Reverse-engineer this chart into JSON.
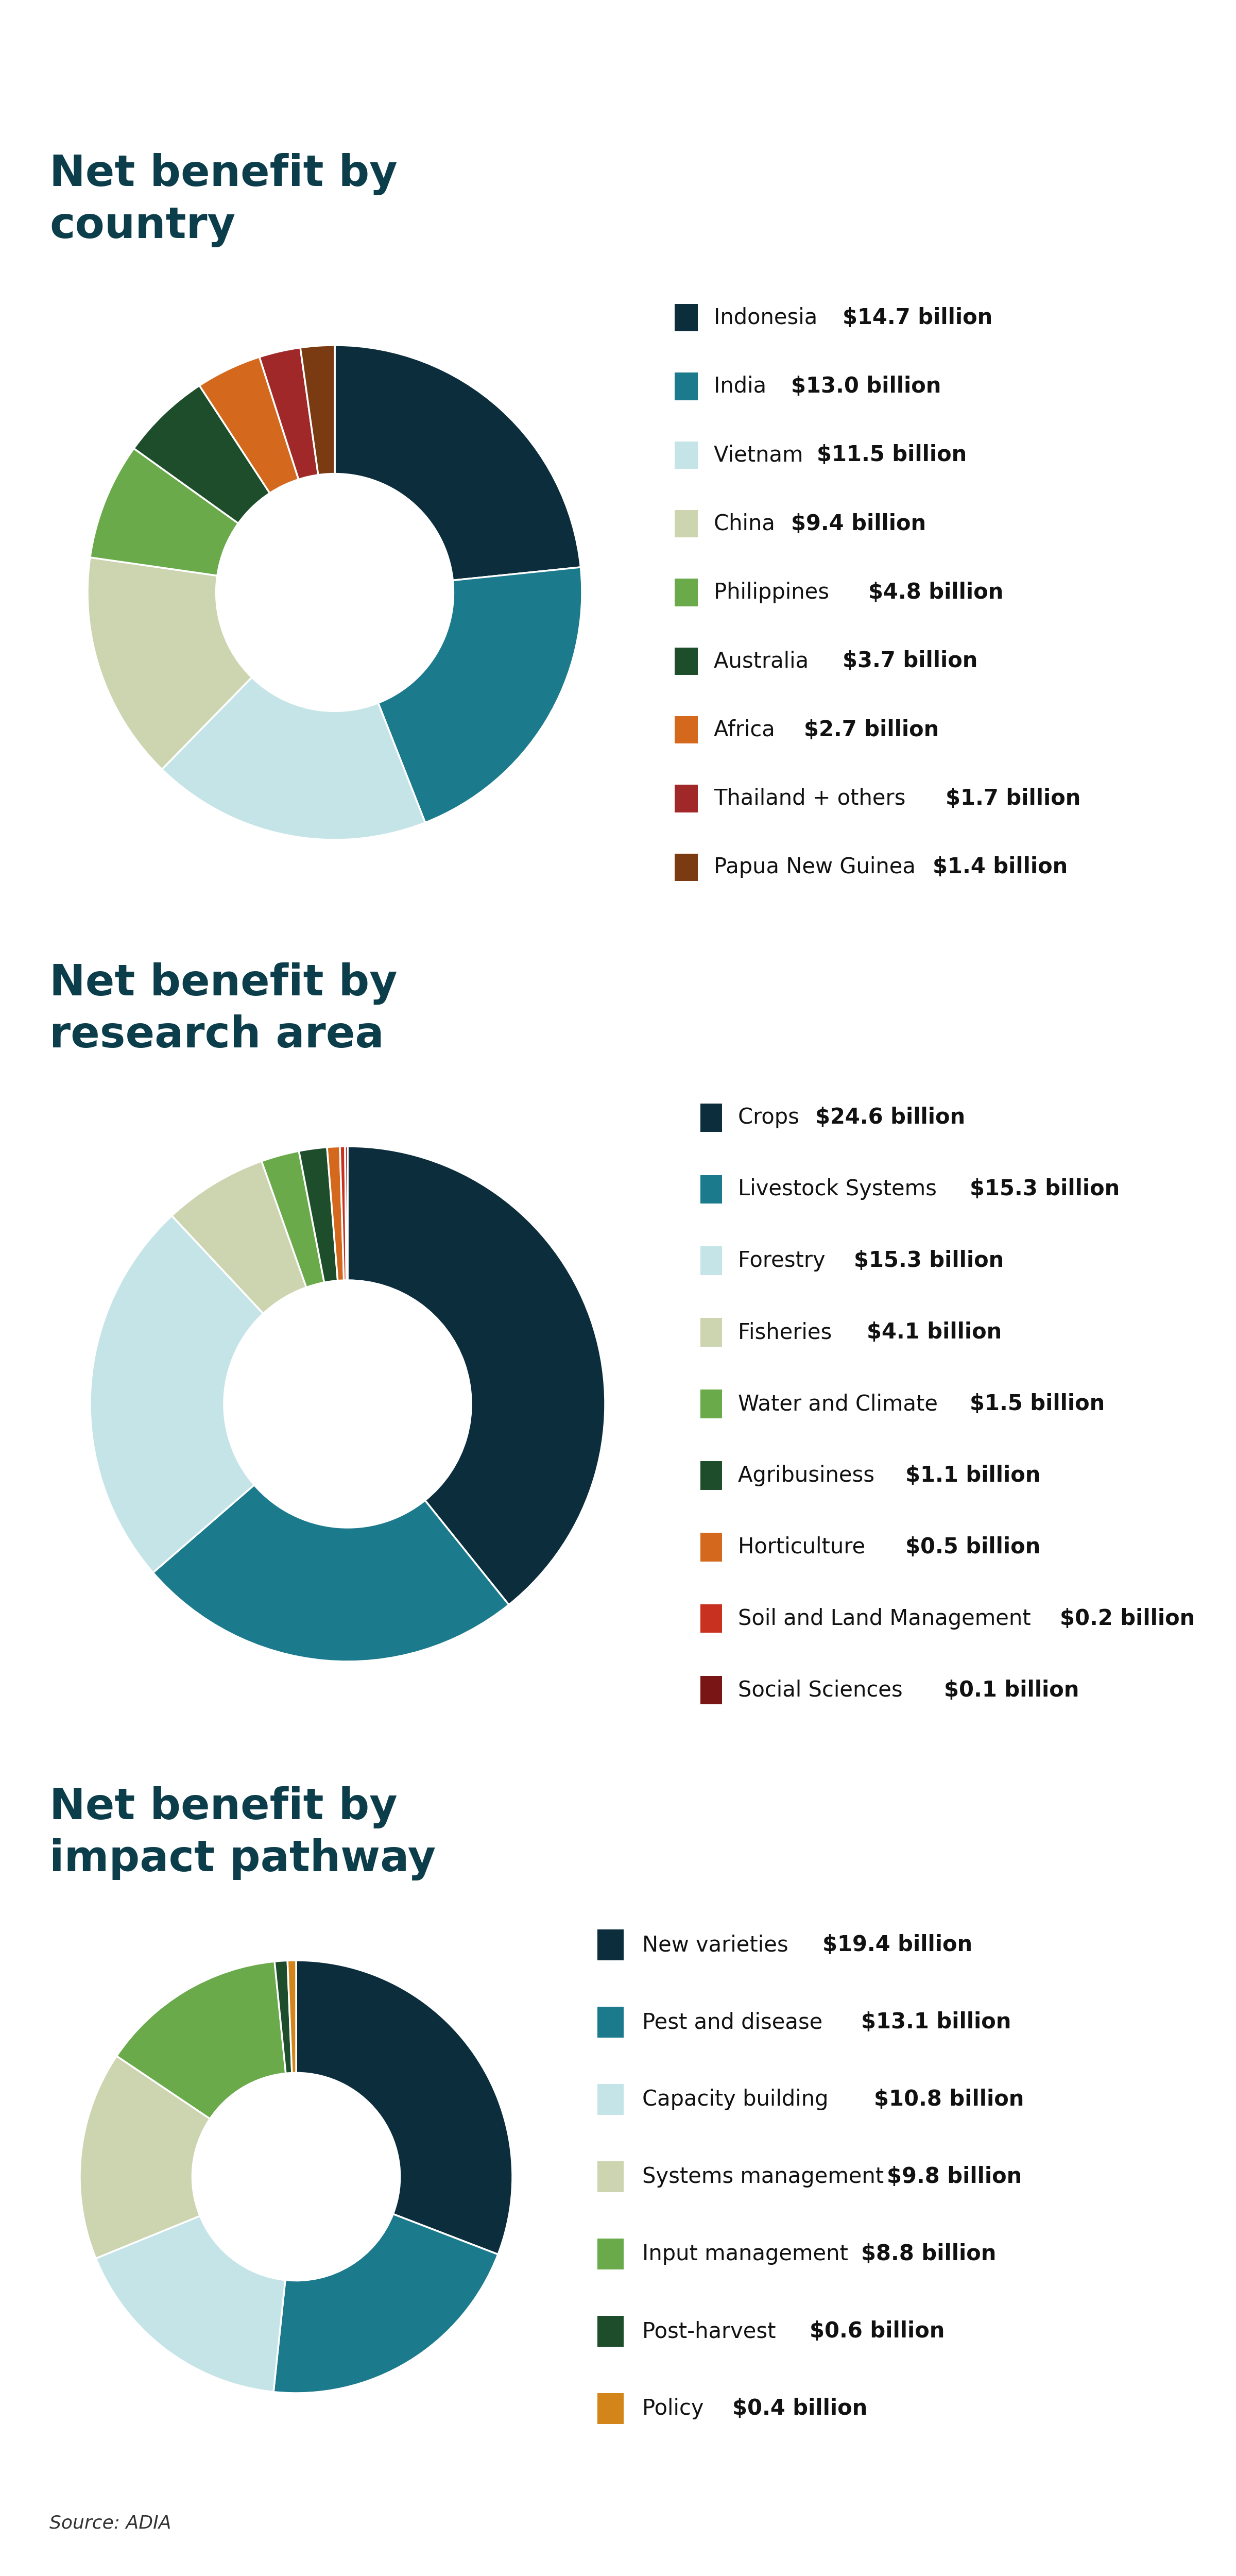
{
  "title_color": "#0c3d4a",
  "background_color": "#ffffff",
  "source_text": "Source: ADIA",
  "chart1_title": "Net benefit by\ncountry",
  "chart1_labels": [
    "Indonesia",
    "India",
    "Vietnam",
    "China",
    "Philippines",
    "Australia",
    "Africa",
    "Thailand + others",
    "Papua New Guinea"
  ],
  "chart1_values": [
    14.7,
    13.0,
    11.5,
    9.4,
    4.8,
    3.7,
    2.7,
    1.7,
    1.4
  ],
  "chart1_amounts": [
    "$14.7 billion",
    "$13.0 billion",
    "$11.5 billion",
    "$9.4 billion",
    "$4.8 billion",
    "$3.7 billion",
    "$2.7 billion",
    "$1.7 billion",
    "$1.4 billion"
  ],
  "chart1_colors": [
    "#0c2d3c",
    "#1b7a8c",
    "#c5e4e8",
    "#cdd5b0",
    "#6aaa4a",
    "#1e4d2b",
    "#d4691e",
    "#a02828",
    "#7a3a12"
  ],
  "chart2_title": "Net benefit by\nresearch area",
  "chart2_labels": [
    "Crops",
    "Livestock Systems",
    "Forestry",
    "Fisheries",
    "Water and Climate",
    "Agribusiness",
    "Horticulture",
    "Soil and Land Management",
    "Social Sciences"
  ],
  "chart2_values": [
    24.6,
    15.3,
    15.3,
    4.1,
    1.5,
    1.1,
    0.5,
    0.2,
    0.1
  ],
  "chart2_amounts": [
    "$24.6 billion",
    "$15.3 billion",
    "$15.3 billion",
    "$4.1 billion",
    "$1.5 billion",
    "$1.1 billion",
    "$0.5 billion",
    "$0.2 billion",
    "$0.1 billion"
  ],
  "chart2_colors": [
    "#0c2d3c",
    "#1b7a8c",
    "#c5e4e8",
    "#cdd5b0",
    "#6aaa4a",
    "#1e4d2b",
    "#d4691e",
    "#c83020",
    "#7a1515"
  ],
  "chart3_title": "Net benefit by\nimpact pathway",
  "chart3_labels": [
    "New varieties",
    "Pest and disease",
    "Capacity building",
    "Systems management",
    "Input management",
    "Post-harvest",
    "Policy"
  ],
  "chart3_values": [
    19.4,
    13.1,
    10.8,
    9.8,
    8.8,
    0.6,
    0.4
  ],
  "chart3_amounts": [
    "$19.4 billion",
    "$13.1 billion",
    "$10.8 billion",
    "$9.8 billion",
    "$8.8 billion",
    "$0.6 billion",
    "$0.4 billion"
  ],
  "chart3_colors": [
    "#0c2d3c",
    "#1b7a8c",
    "#c5e4e8",
    "#cdd5b0",
    "#6aaa4a",
    "#1e4d2b",
    "#d4851a"
  ]
}
